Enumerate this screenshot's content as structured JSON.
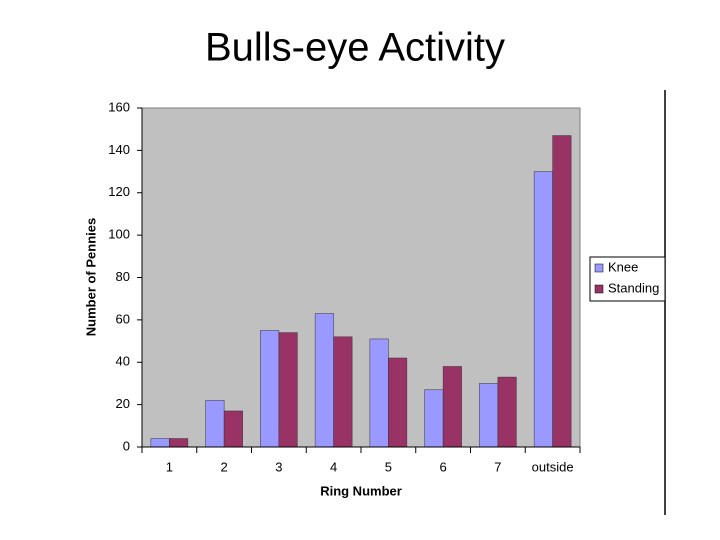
{
  "chart_data": {
    "type": "bar",
    "title": "Bulls-eye Activity",
    "x_label": "Ring Number",
    "y_label": "Number of Pennies",
    "categories": [
      "1",
      "2",
      "3",
      "4",
      "5",
      "6",
      "7",
      "outside"
    ],
    "series": [
      {
        "name": "Knee",
        "color": "#9999ff",
        "values": [
          4,
          22,
          55,
          63,
          51,
          27,
          30,
          130
        ]
      },
      {
        "name": "Standing",
        "color": "#993366",
        "values": [
          4,
          17,
          54,
          52,
          42,
          38,
          33,
          147
        ]
      }
    ],
    "ylim": [
      0,
      160
    ],
    "yticks": [
      0,
      20,
      40,
      60,
      80,
      100,
      120,
      140,
      160
    ],
    "grid": false,
    "legend": "right",
    "plot_background": "#c0c0c0"
  }
}
